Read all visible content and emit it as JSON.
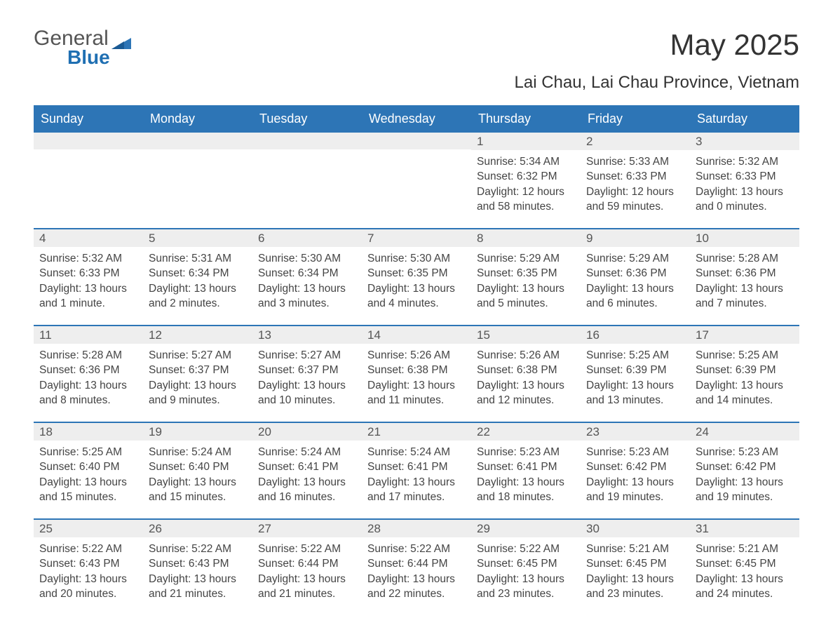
{
  "logo": {
    "text1": "General",
    "text2": "Blue"
  },
  "title": "May 2025",
  "location": "Lai Chau, Lai Chau Province, Vietnam",
  "colors": {
    "header_bg": "#2d75b6",
    "header_text": "#ffffff",
    "daynum_bg": "#eeeeee",
    "border": "#2d75b6",
    "body_text": "#444444",
    "logo_gray": "#555555",
    "logo_blue": "#1f6fb2"
  },
  "weekdays": [
    "Sunday",
    "Monday",
    "Tuesday",
    "Wednesday",
    "Thursday",
    "Friday",
    "Saturday"
  ],
  "weeks": [
    [
      {
        "day": "",
        "sunrise": "",
        "sunset": "",
        "daylight": ""
      },
      {
        "day": "",
        "sunrise": "",
        "sunset": "",
        "daylight": ""
      },
      {
        "day": "",
        "sunrise": "",
        "sunset": "",
        "daylight": ""
      },
      {
        "day": "",
        "sunrise": "",
        "sunset": "",
        "daylight": ""
      },
      {
        "day": "1",
        "sunrise": "Sunrise: 5:34 AM",
        "sunset": "Sunset: 6:32 PM",
        "daylight": "Daylight: 12 hours and 58 minutes."
      },
      {
        "day": "2",
        "sunrise": "Sunrise: 5:33 AM",
        "sunset": "Sunset: 6:33 PM",
        "daylight": "Daylight: 12 hours and 59 minutes."
      },
      {
        "day": "3",
        "sunrise": "Sunrise: 5:32 AM",
        "sunset": "Sunset: 6:33 PM",
        "daylight": "Daylight: 13 hours and 0 minutes."
      }
    ],
    [
      {
        "day": "4",
        "sunrise": "Sunrise: 5:32 AM",
        "sunset": "Sunset: 6:33 PM",
        "daylight": "Daylight: 13 hours and 1 minute."
      },
      {
        "day": "5",
        "sunrise": "Sunrise: 5:31 AM",
        "sunset": "Sunset: 6:34 PM",
        "daylight": "Daylight: 13 hours and 2 minutes."
      },
      {
        "day": "6",
        "sunrise": "Sunrise: 5:30 AM",
        "sunset": "Sunset: 6:34 PM",
        "daylight": "Daylight: 13 hours and 3 minutes."
      },
      {
        "day": "7",
        "sunrise": "Sunrise: 5:30 AM",
        "sunset": "Sunset: 6:35 PM",
        "daylight": "Daylight: 13 hours and 4 minutes."
      },
      {
        "day": "8",
        "sunrise": "Sunrise: 5:29 AM",
        "sunset": "Sunset: 6:35 PM",
        "daylight": "Daylight: 13 hours and 5 minutes."
      },
      {
        "day": "9",
        "sunrise": "Sunrise: 5:29 AM",
        "sunset": "Sunset: 6:36 PM",
        "daylight": "Daylight: 13 hours and 6 minutes."
      },
      {
        "day": "10",
        "sunrise": "Sunrise: 5:28 AM",
        "sunset": "Sunset: 6:36 PM",
        "daylight": "Daylight: 13 hours and 7 minutes."
      }
    ],
    [
      {
        "day": "11",
        "sunrise": "Sunrise: 5:28 AM",
        "sunset": "Sunset: 6:36 PM",
        "daylight": "Daylight: 13 hours and 8 minutes."
      },
      {
        "day": "12",
        "sunrise": "Sunrise: 5:27 AM",
        "sunset": "Sunset: 6:37 PM",
        "daylight": "Daylight: 13 hours and 9 minutes."
      },
      {
        "day": "13",
        "sunrise": "Sunrise: 5:27 AM",
        "sunset": "Sunset: 6:37 PM",
        "daylight": "Daylight: 13 hours and 10 minutes."
      },
      {
        "day": "14",
        "sunrise": "Sunrise: 5:26 AM",
        "sunset": "Sunset: 6:38 PM",
        "daylight": "Daylight: 13 hours and 11 minutes."
      },
      {
        "day": "15",
        "sunrise": "Sunrise: 5:26 AM",
        "sunset": "Sunset: 6:38 PM",
        "daylight": "Daylight: 13 hours and 12 minutes."
      },
      {
        "day": "16",
        "sunrise": "Sunrise: 5:25 AM",
        "sunset": "Sunset: 6:39 PM",
        "daylight": "Daylight: 13 hours and 13 minutes."
      },
      {
        "day": "17",
        "sunrise": "Sunrise: 5:25 AM",
        "sunset": "Sunset: 6:39 PM",
        "daylight": "Daylight: 13 hours and 14 minutes."
      }
    ],
    [
      {
        "day": "18",
        "sunrise": "Sunrise: 5:25 AM",
        "sunset": "Sunset: 6:40 PM",
        "daylight": "Daylight: 13 hours and 15 minutes."
      },
      {
        "day": "19",
        "sunrise": "Sunrise: 5:24 AM",
        "sunset": "Sunset: 6:40 PM",
        "daylight": "Daylight: 13 hours and 15 minutes."
      },
      {
        "day": "20",
        "sunrise": "Sunrise: 5:24 AM",
        "sunset": "Sunset: 6:41 PM",
        "daylight": "Daylight: 13 hours and 16 minutes."
      },
      {
        "day": "21",
        "sunrise": "Sunrise: 5:24 AM",
        "sunset": "Sunset: 6:41 PM",
        "daylight": "Daylight: 13 hours and 17 minutes."
      },
      {
        "day": "22",
        "sunrise": "Sunrise: 5:23 AM",
        "sunset": "Sunset: 6:41 PM",
        "daylight": "Daylight: 13 hours and 18 minutes."
      },
      {
        "day": "23",
        "sunrise": "Sunrise: 5:23 AM",
        "sunset": "Sunset: 6:42 PM",
        "daylight": "Daylight: 13 hours and 19 minutes."
      },
      {
        "day": "24",
        "sunrise": "Sunrise: 5:23 AM",
        "sunset": "Sunset: 6:42 PM",
        "daylight": "Daylight: 13 hours and 19 minutes."
      }
    ],
    [
      {
        "day": "25",
        "sunrise": "Sunrise: 5:22 AM",
        "sunset": "Sunset: 6:43 PM",
        "daylight": "Daylight: 13 hours and 20 minutes."
      },
      {
        "day": "26",
        "sunrise": "Sunrise: 5:22 AM",
        "sunset": "Sunset: 6:43 PM",
        "daylight": "Daylight: 13 hours and 21 minutes."
      },
      {
        "day": "27",
        "sunrise": "Sunrise: 5:22 AM",
        "sunset": "Sunset: 6:44 PM",
        "daylight": "Daylight: 13 hours and 21 minutes."
      },
      {
        "day": "28",
        "sunrise": "Sunrise: 5:22 AM",
        "sunset": "Sunset: 6:44 PM",
        "daylight": "Daylight: 13 hours and 22 minutes."
      },
      {
        "day": "29",
        "sunrise": "Sunrise: 5:22 AM",
        "sunset": "Sunset: 6:45 PM",
        "daylight": "Daylight: 13 hours and 23 minutes."
      },
      {
        "day": "30",
        "sunrise": "Sunrise: 5:21 AM",
        "sunset": "Sunset: 6:45 PM",
        "daylight": "Daylight: 13 hours and 23 minutes."
      },
      {
        "day": "31",
        "sunrise": "Sunrise: 5:21 AM",
        "sunset": "Sunset: 6:45 PM",
        "daylight": "Daylight: 13 hours and 24 minutes."
      }
    ]
  ]
}
